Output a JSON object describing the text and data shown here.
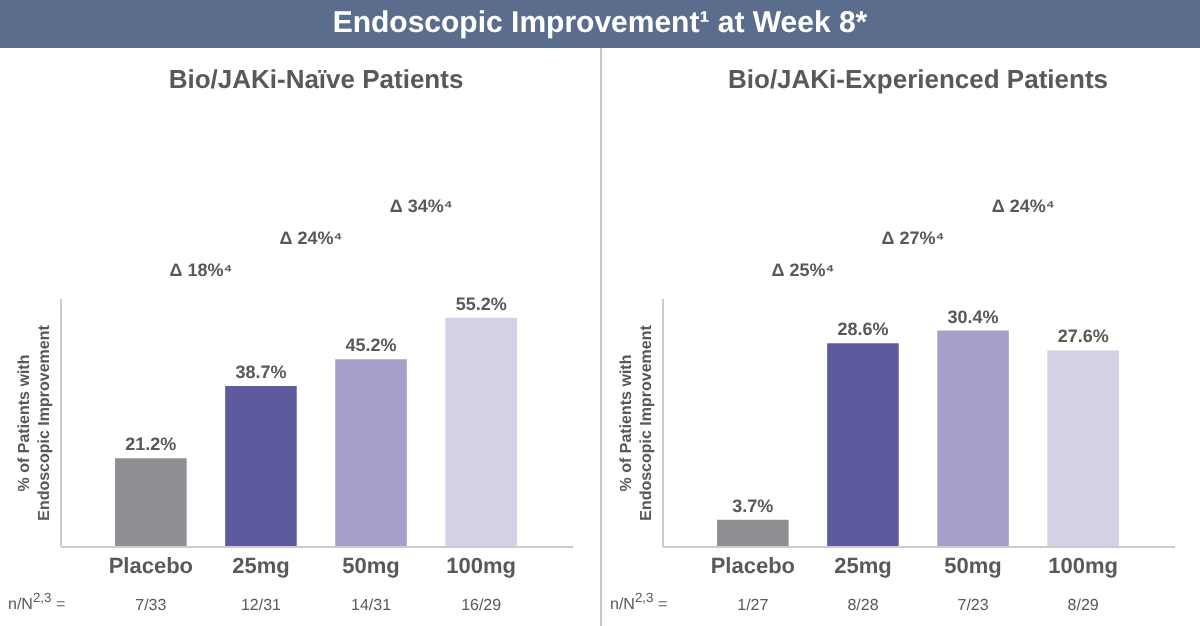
{
  "chart_data": [
    {
      "type": "bar",
      "title": "Endoscopic Improvement¹ at Week 8*",
      "subtitle": "Bio/JAKi-Naïve Patients",
      "ylabel": "% of Patients with Endoscopic Improvement",
      "categories": [
        "Placebo",
        "25mg",
        "50mg",
        "100mg"
      ],
      "values": [
        21.2,
        38.7,
        45.2,
        55.2
      ],
      "colors": [
        "#8e8e93",
        "#5e5a9e",
        "#a79fcb",
        "#d4d0e6"
      ],
      "data_labels": true,
      "value_labels": [
        "21.2%",
        "38.7%",
        "45.2%",
        "55.2%"
      ],
      "annotations": [
        "Δ 34%⁴",
        "Δ 24%⁴",
        "Δ 18%⁴",
        "n/N$^{2,3}$ =",
        "7/33",
        "12/31",
        "14/31",
        "16/29"
      ]
    },
    {
      "type": "bar",
      "subtitle": "Bio/JAKi-Experienced Patients",
      "ylabel": "% of Patients with Endoscopic Improvement",
      "categories": [
        "Placebo",
        "25mg",
        "50mg",
        "100mg"
      ],
      "values": [
        3.7,
        28.6,
        30.4,
        27.6
      ],
      "colors": [
        "#8e8e93",
        "#5e5a9e",
        "#a79fcb",
        "#d4d0e6"
      ],
      "data_labels": true,
      "value_labels": [
        "3.7%",
        "28.6%",
        "30.4%",
        "27.6%"
      ],
      "annotations": [
        "Δ 24%⁴",
        "Δ 27%⁴",
        "Δ 25%⁴",
        "n/N$^{2,3}$ =",
        "1/27",
        "8/28",
        "7/23",
        "8/29"
      ]
    }
  ]
}
